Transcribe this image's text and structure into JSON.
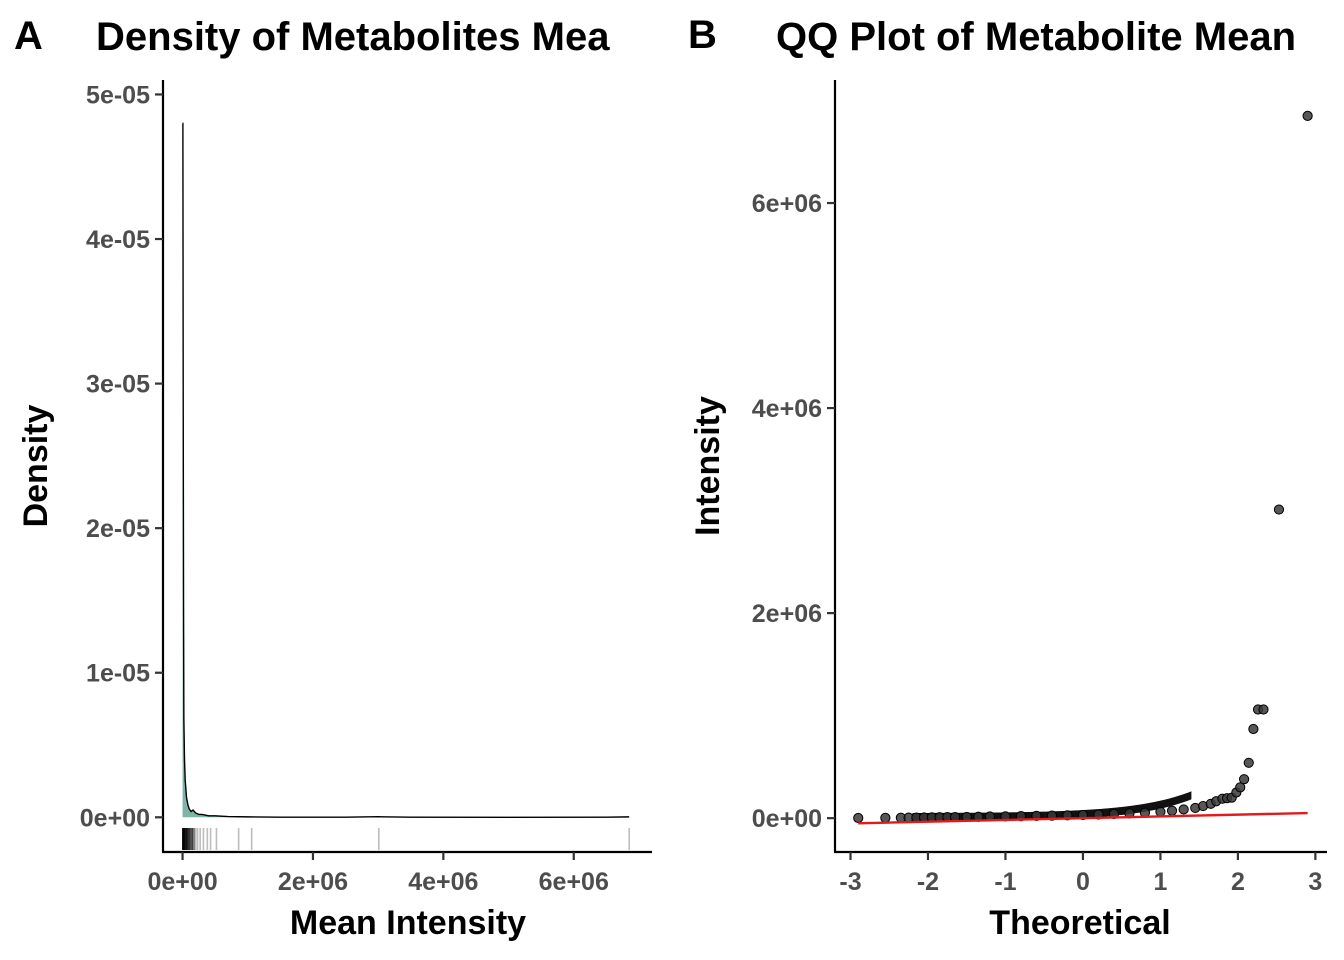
{
  "panels": {
    "A": {
      "label": "A"
    },
    "B": {
      "label": "B"
    }
  },
  "colors": {
    "density_fill": "#7fb5a8",
    "density_line": "#000000",
    "rug_dark": "#000000",
    "rug_light": "#bdbdbd",
    "points": "#3a3a3a",
    "reference_line": "#e31a1c"
  },
  "chart_data": [
    {
      "type": "area",
      "title": "Density of Metabolites Mea",
      "xlabel": "Mean Intensity",
      "ylabel": "Density",
      "xlim": [
        -300000,
        7200000
      ],
      "ylim": [
        -2.4e-06,
        5.1e-05
      ],
      "x_ticks": [
        0,
        2000000,
        4000000,
        6000000
      ],
      "x_tick_labels": [
        "0e+00",
        "2e+06",
        "4e+06",
        "6e+06"
      ],
      "y_ticks": [
        0,
        1e-05,
        2e-05,
        3e-05,
        4e-05,
        5e-05
      ],
      "y_tick_labels": [
        "0e+00",
        "1e-05",
        "2e-05",
        "3e-05",
        "4e-05",
        "5e-05"
      ],
      "grid": false,
      "density": {
        "x": [
          0,
          5000,
          10000,
          15000,
          20000,
          30000,
          40000,
          60000,
          80000,
          100000,
          130000,
          160000,
          200000,
          250000,
          300000,
          400000,
          500000,
          700000,
          1000000,
          1500000,
          2500000,
          3000000,
          3500000,
          5000000,
          6500000,
          6850000
        ],
        "y": [
          4.8e-05,
          4.8e-05,
          2.9e-05,
          1.5e-05,
          6.8e-06,
          4e-06,
          2.6e-06,
          1.4e-06,
          9e-07,
          6e-07,
          4e-07,
          5e-07,
          3e-07,
          2e-07,
          2e-07,
          1e-07,
          1e-07,
          5e-08,
          3e-08,
          1e-08,
          1e-08,
          4e-08,
          1e-08,
          0,
          1e-08,
          3e-08
        ]
      },
      "rug_x": [
        2000,
        5000,
        8000,
        12000,
        15000,
        20000,
        25000,
        30000,
        40000,
        50000,
        60000,
        70000,
        80000,
        95000,
        110000,
        130000,
        150000,
        175000,
        200000,
        230000,
        270000,
        320000,
        380000,
        430000,
        520000,
        860000,
        1060000,
        3010000,
        6850000
      ]
    },
    {
      "type": "scatter",
      "title": "QQ Plot of Metabolite Mean",
      "xlabel": "Theoretical",
      "ylabel": "Intensity",
      "xlim": [
        -3.2,
        3.15
      ],
      "ylim": [
        -330000,
        7200000
      ],
      "x_ticks": [
        -3,
        -2,
        -1,
        0,
        1,
        2,
        3
      ],
      "x_tick_labels": [
        "-3",
        "-2",
        "-1",
        "0",
        "1",
        "2",
        "3"
      ],
      "y_ticks": [
        0,
        2000000,
        4000000,
        6000000
      ],
      "y_tick_labels": [
        "0e+00",
        "2e+06",
        "4e+06",
        "6e+06"
      ],
      "grid": false,
      "points": {
        "x": [
          -2.9,
          -2.55,
          -2.35,
          -2.25,
          -2.15,
          -2.05,
          -1.95,
          -1.85,
          -1.75,
          -1.65,
          -1.5,
          -1.35,
          -1.2,
          -1.0,
          -0.8,
          -0.6,
          -0.4,
          -0.2,
          0.0,
          0.2,
          0.4,
          0.6,
          0.8,
          1.0,
          1.15,
          1.3,
          1.45,
          1.55,
          1.65,
          1.72,
          1.8,
          1.86,
          1.92,
          1.98,
          2.03,
          2.08,
          2.14,
          2.2,
          2.26,
          2.33,
          2.53,
          2.9
        ],
        "y": [
          2000,
          3000,
          4000,
          5000,
          6000,
          7000,
          8000,
          9000,
          10000,
          11000,
          12000,
          14000,
          16000,
          18000,
          20000,
          22000,
          25000,
          28000,
          31000,
          35000,
          40000,
          46000,
          53000,
          62000,
          72000,
          85000,
          100000,
          118000,
          140000,
          165000,
          190000,
          195000,
          200000,
          250000,
          300000,
          380000,
          540000,
          870000,
          1060000,
          1060000,
          3010000,
          6850000
        ]
      },
      "reference_line": {
        "x": [
          -2.9,
          2.9
        ],
        "y": [
          -50000,
          50000
        ]
      }
    }
  ]
}
